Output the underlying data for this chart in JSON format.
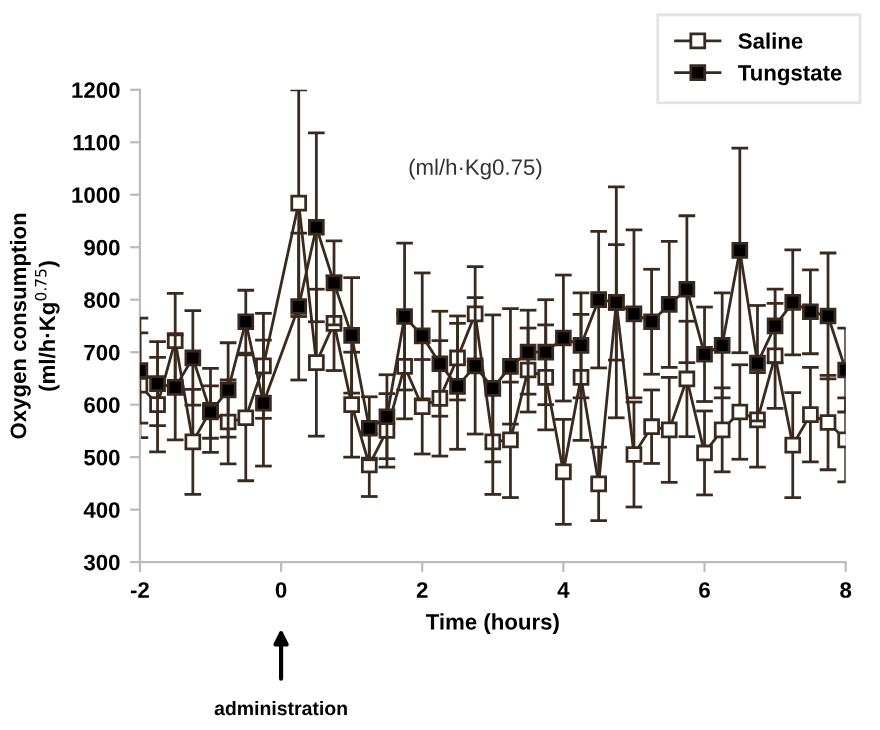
{
  "chart_data": {
    "type": "line",
    "xlabel": "Time (hours)",
    "ylabel": "Oxygen consumption\n(ml/h·Kg$^{0.75}$)",
    "x": [
      -2,
      -1.75,
      -1.5,
      -1.25,
      -1,
      -0.75,
      -0.5,
      -0.25,
      0.25,
      0.5,
      0.75,
      1,
      1.25,
      1.5,
      1.75,
      2,
      2.25,
      2.5,
      2.75,
      3,
      3.25,
      3.5,
      3.75,
      4,
      4.25,
      4.5,
      4.75,
      5,
      5.25,
      5.5,
      5.75,
      6,
      6.25,
      6.5,
      6.75,
      7,
      7.25,
      7.5,
      7.75,
      8
    ],
    "series": [
      {
        "name": "Saline",
        "color": "#3a2a1e",
        "marker": "square",
        "values": [
          637,
          600,
          722,
          529,
          589,
          567,
          575,
          674,
          984,
          680,
          755,
          600,
          485,
          551,
          673,
          596,
          612,
          689,
          773,
          529,
          533,
          666,
          652,
          472,
          652,
          449,
          795,
          505,
          558,
          552,
          649,
          508,
          552,
          586,
          571,
          693,
          523,
          581,
          566,
          533
        ],
        "errors": [
          100,
          90,
          90,
          100,
          80,
          80,
          120,
          100,
          216,
          140,
          90,
          100,
          60,
          70,
          100,
          90,
          110,
          80,
          90,
          100,
          110,
          80,
          100,
          100,
          120,
          70,
          110,
          100,
          70,
          100,
          110,
          80,
          80,
          90,
          90,
          100,
          100,
          90,
          90,
          80
        ]
      },
      {
        "name": "Tungstate",
        "color": "#3a2a1e",
        "marker": "square",
        "values": [
          665,
          640,
          633,
          689,
          586,
          628,
          758,
          603,
          787,
          938,
          832,
          732,
          555,
          577,
          768,
          731,
          678,
          635,
          674,
          631,
          673,
          700,
          700,
          727,
          713,
          800,
          795,
          773,
          758,
          791,
          820,
          696,
          713,
          894,
          679,
          750,
          795,
          777,
          769,
          666
        ],
        "errors": [
          100,
          80,
          100,
          90,
          50,
          90,
          60,
          120,
          140,
          180,
          80,
          110,
          60,
          80,
          140,
          120,
          100,
          120,
          130,
          140,
          110,
          80,
          100,
          120,
          100,
          130,
          220,
          160,
          100,
          120,
          140,
          90,
          100,
          195,
          110,
          70,
          100,
          80,
          120,
          80
        ]
      }
    ],
    "xlim": [
      -2,
      8
    ],
    "xticks": [
      -2,
      0,
      2,
      4,
      6,
      8
    ],
    "ylim": [
      300,
      1200
    ],
    "yticks": [
      300,
      400,
      500,
      600,
      700,
      800,
      900,
      1000,
      1100,
      1200
    ],
    "grid": false,
    "legend": "top right",
    "annotations": [
      "administration",
      "(ml/h·Kg0.75)"
    ]
  }
}
